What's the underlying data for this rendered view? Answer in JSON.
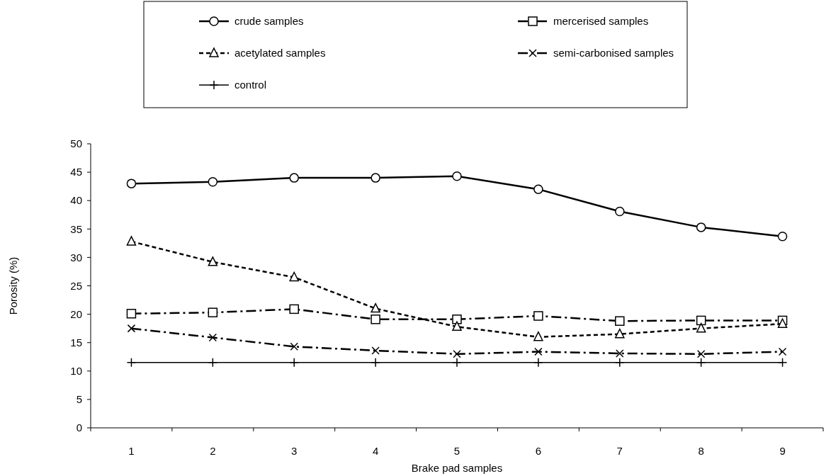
{
  "chart_data": {
    "type": "line",
    "xlabel": "Brake pad samples",
    "ylabel": "Porosity (%)",
    "categories": [
      "1",
      "2",
      "3",
      "4",
      "5",
      "6",
      "7",
      "8",
      "9"
    ],
    "ylim": [
      0,
      50
    ],
    "yticks": [
      0,
      5,
      10,
      15,
      20,
      25,
      30,
      35,
      40,
      45,
      50
    ],
    "grid": false,
    "legend": "top",
    "series": [
      {
        "name": "crude samples",
        "color": "#000000",
        "marker": "circle",
        "line_style": "solid",
        "values": [
          43,
          43.3,
          44,
          44,
          44.3,
          42,
          38.1,
          35.3,
          33.7
        ]
      },
      {
        "name": "mercerised samples",
        "color": "#000000",
        "marker": "square",
        "line_style": "dashed",
        "values": [
          20.1,
          20.3,
          20.9,
          19.1,
          19.1,
          19.7,
          18.8,
          18.9,
          18.9
        ]
      },
      {
        "name": "acetylated samples",
        "color": "#000000",
        "marker": "triangle",
        "line_style": "dotted",
        "values": [
          32.8,
          29.2,
          26.5,
          21,
          17.8,
          16,
          16.5,
          17.5,
          18.3
        ]
      },
      {
        "name": "semi-carbonised samples",
        "color": "#000000",
        "marker": "cross",
        "line_style": "dashed",
        "values": [
          17.5,
          15.9,
          14.3,
          13.6,
          13,
          13.4,
          13.1,
          13,
          13.4
        ]
      },
      {
        "name": "control",
        "color": "#000000",
        "marker": "plus",
        "line_style": "solid",
        "values": [
          11.5,
          11.5,
          11.5,
          11.5,
          11.5,
          11.5,
          11.5,
          11.5,
          11.5
        ]
      }
    ]
  }
}
